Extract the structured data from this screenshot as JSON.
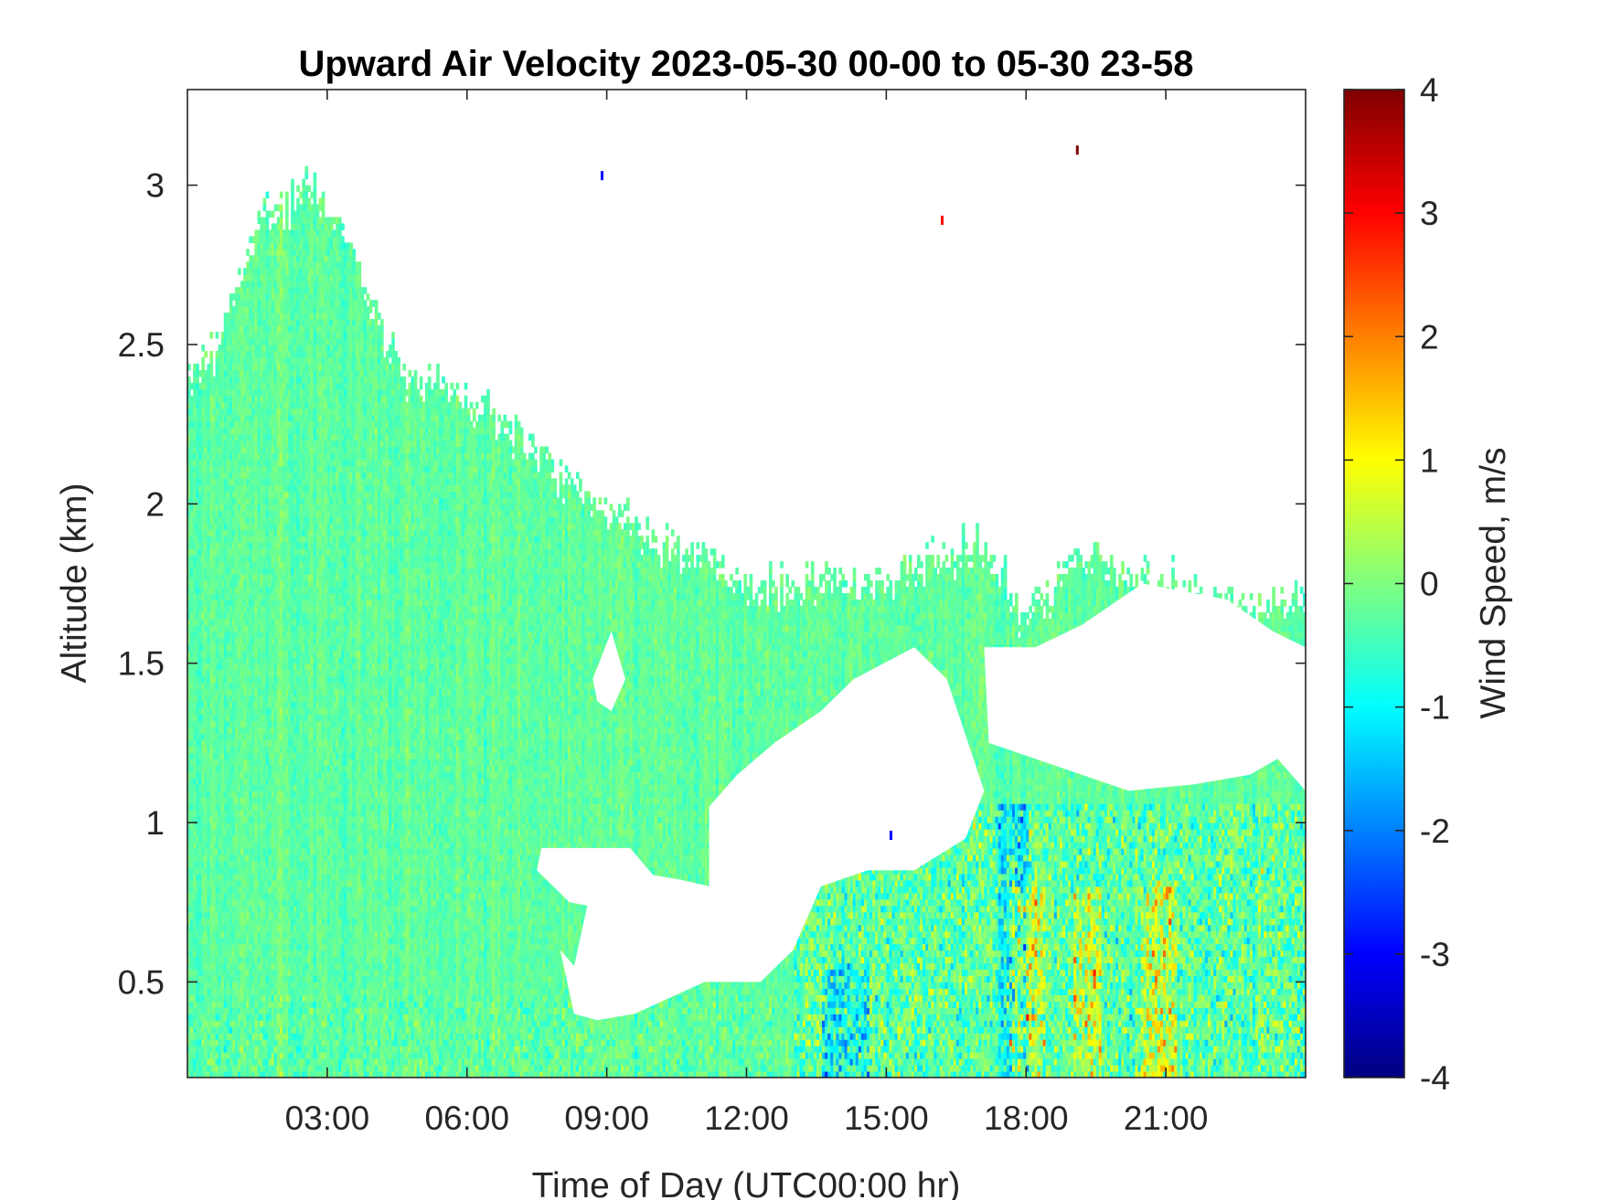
{
  "chart_data": {
    "type": "heatmap",
    "title": "Upward Air Velocity 2023-05-30 00-00 to 05-30 23-58",
    "xlabel": "Time of Day (UTC00:00 hr)",
    "ylabel": "Altitude (km)",
    "xlim": [
      0,
      24
    ],
    "ylim": [
      0.2,
      3.3
    ],
    "x_ticks": [
      {
        "value": 3,
        "label": "03:00"
      },
      {
        "value": 6,
        "label": "06:00"
      },
      {
        "value": 9,
        "label": "09:00"
      },
      {
        "value": 12,
        "label": "12:00"
      },
      {
        "value": 15,
        "label": "15:00"
      },
      {
        "value": 18,
        "label": "18:00"
      },
      {
        "value": 21,
        "label": "21:00"
      }
    ],
    "y_ticks": [
      {
        "value": 0.5,
        "label": "0.5"
      },
      {
        "value": 1,
        "label": "1"
      },
      {
        "value": 1.5,
        "label": "1.5"
      },
      {
        "value": 2,
        "label": "2"
      },
      {
        "value": 2.5,
        "label": "2.5"
      },
      {
        "value": 3,
        "label": "3"
      }
    ],
    "colorbar": {
      "label": "Wind Speed, m/s",
      "range": [
        -4,
        4
      ],
      "colormap": "jet",
      "ticks": [
        {
          "value": 4,
          "label": "4"
        },
        {
          "value": 3,
          "label": "3"
        },
        {
          "value": 2,
          "label": "2"
        },
        {
          "value": 1,
          "label": "1"
        },
        {
          "value": 0,
          "label": "0"
        },
        {
          "value": -1,
          "label": "-1"
        },
        {
          "value": -2,
          "label": "-2"
        },
        {
          "value": -3,
          "label": "-3"
        },
        {
          "value": -4,
          "label": "-4"
        }
      ],
      "colors": [
        "#00008f",
        "#0000ff",
        "#0080ff",
        "#00ffff",
        "#80ff80",
        "#ffff00",
        "#ff8000",
        "#ff0000",
        "#800000"
      ]
    },
    "data_top_km": [
      [
        0,
        2.4
      ],
      [
        0.5,
        2.5
      ],
      [
        1,
        2.7
      ],
      [
        1.5,
        2.9
      ],
      [
        2,
        2.95
      ],
      [
        2.5,
        3.0
      ],
      [
        3,
        2.95
      ],
      [
        3.5,
        2.8
      ],
      [
        4,
        2.6
      ],
      [
        4.5,
        2.45
      ],
      [
        5,
        2.4
      ],
      [
        6,
        2.35
      ],
      [
        7,
        2.25
      ],
      [
        8,
        2.1
      ],
      [
        9,
        2.0
      ],
      [
        10,
        1.9
      ],
      [
        11,
        1.85
      ],
      [
        12,
        1.75
      ],
      [
        13,
        1.75
      ],
      [
        14,
        1.8
      ],
      [
        15,
        1.75
      ],
      [
        16,
        1.85
      ],
      [
        17,
        1.9
      ],
      [
        18,
        1.65
      ],
      [
        19,
        1.85
      ],
      [
        20,
        1.8
      ],
      [
        21,
        1.75
      ],
      [
        22,
        1.72
      ],
      [
        23,
        1.7
      ],
      [
        24,
        1.7
      ]
    ],
    "data_gaps": [
      {
        "polygon": [
          [
            8.0,
            0.6
          ],
          [
            8.3,
            0.55
          ],
          [
            8.6,
            0.75
          ],
          [
            9.4,
            0.85
          ],
          [
            10.6,
            0.82
          ],
          [
            11.2,
            0.8
          ],
          [
            11.2,
            1.05
          ],
          [
            11.8,
            1.15
          ],
          [
            12.6,
            1.25
          ],
          [
            13.6,
            1.35
          ],
          [
            14.3,
            1.45
          ],
          [
            15.6,
            1.55
          ],
          [
            16.3,
            1.45
          ],
          [
            17.1,
            1.1
          ],
          [
            16.7,
            0.95
          ],
          [
            15.6,
            0.85
          ],
          [
            14.6,
            0.85
          ],
          [
            13.6,
            0.8
          ],
          [
            13.0,
            0.6
          ],
          [
            12.3,
            0.5
          ],
          [
            11.1,
            0.5
          ],
          [
            10.2,
            0.44
          ],
          [
            9.6,
            0.4
          ],
          [
            8.8,
            0.38
          ],
          [
            8.3,
            0.4
          ]
        ]
      },
      {
        "polygon": [
          [
            7.6,
            0.92
          ],
          [
            9.5,
            0.92
          ],
          [
            10.2,
            0.8
          ],
          [
            9.3,
            0.72
          ],
          [
            8.2,
            0.75
          ],
          [
            7.5,
            0.85
          ]
        ]
      },
      {
        "polygon": [
          [
            8.7,
            1.45
          ],
          [
            9.1,
            1.6
          ],
          [
            9.4,
            1.45
          ],
          [
            9.1,
            1.35
          ],
          [
            8.8,
            1.38
          ]
        ]
      },
      {
        "polygon": [
          [
            17.1,
            1.55
          ],
          [
            18.2,
            1.55
          ],
          [
            19.2,
            1.62
          ],
          [
            20.5,
            1.75
          ],
          [
            22.3,
            1.7
          ],
          [
            23.3,
            1.6
          ],
          [
            24.0,
            1.55
          ],
          [
            24.0,
            1.1
          ],
          [
            23.4,
            1.2
          ],
          [
            22.8,
            1.15
          ],
          [
            21.6,
            1.12
          ],
          [
            20.2,
            1.1
          ],
          [
            19.2,
            1.15
          ],
          [
            18.2,
            1.2
          ],
          [
            17.2,
            1.25
          ]
        ]
      }
    ],
    "strong_updraft_bands": [
      {
        "x": [
          17.6,
          18.4
        ],
        "y_max": 0.8
      },
      {
        "x": [
          19.0,
          19.6
        ],
        "y_max": 0.8
      },
      {
        "x": [
          20.4,
          21.2
        ],
        "y_max": 0.82
      }
    ],
    "strong_downdraft_bands": [
      {
        "x": [
          13.6,
          14.6
        ],
        "y_max": 0.55
      },
      {
        "x": [
          17.4,
          18.0
        ],
        "y_max": 1.05
      }
    ],
    "isolated_points": [
      {
        "x": 19.1,
        "y": 3.11,
        "value": 4
      },
      {
        "x": 16.2,
        "y": 2.89,
        "value": 3
      },
      {
        "x": 8.9,
        "y": 3.03,
        "value": -3
      },
      {
        "x": 15.1,
        "y": 0.96,
        "value": -3
      }
    ]
  }
}
